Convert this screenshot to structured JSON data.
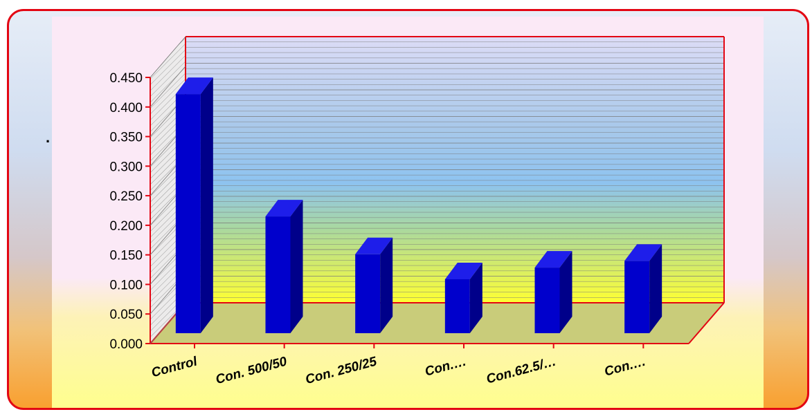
{
  "chart_data": {
    "type": "bar",
    "style": "3d-column",
    "categories": [
      "Control",
      "Con. 500/50",
      "Con. 250/25",
      "Con.…",
      "Con.62.5/…",
      "Con.…"
    ],
    "values": [
      0.43,
      0.21,
      0.142,
      0.097,
      0.118,
      0.13
    ],
    "yticks": [
      "0.000",
      "0.050",
      "0.100",
      "0.150",
      "0.200",
      "0.250",
      "0.300",
      "0.350",
      "0.400",
      "0.450"
    ],
    "ylim": [
      0,
      0.45
    ],
    "title": "",
    "xlabel": "",
    "ylabel": "",
    "grid": true,
    "legend": "none",
    "bar_color": "#0000cc",
    "bar_side_color": "#00008a",
    "bar_top_color": "#1e1eea",
    "axis_color": "#e30613",
    "floor_color": "#c9cc7a"
  },
  "stray_mark": "."
}
